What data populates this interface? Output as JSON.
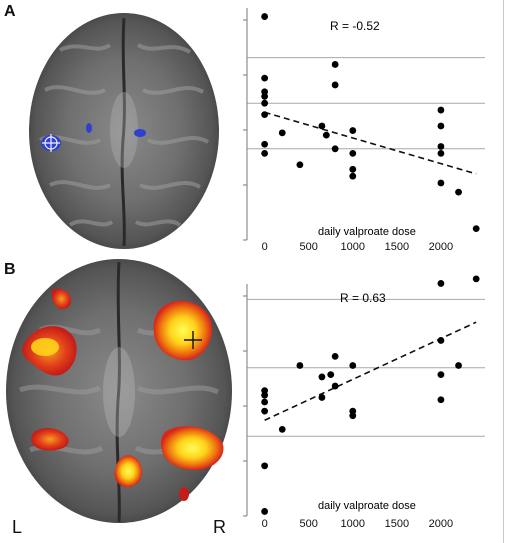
{
  "panels": {
    "a_label": "A",
    "b_label": "B"
  },
  "brain": {
    "left_label": "L",
    "right_label": "R"
  },
  "chart_data": [
    {
      "type": "scatter",
      "annotation": "R = -0.52",
      "xlabel": "daily valproate dose",
      "ylabel": "",
      "xlim": [
        -200,
        2500
      ],
      "ylim": [
        0,
        10
      ],
      "xticks": [
        0,
        500,
        1000,
        1500,
        2000
      ],
      "xtick_labels": [
        "0",
        "500",
        "1000",
        "1500",
        "2000"
      ],
      "gridlines_y": [
        4,
        6,
        8
      ],
      "grid": true,
      "trend_line": {
        "style": "dashed",
        "x": [
          0,
          2400
        ],
        "y": [
          5.6,
          2.9
        ]
      },
      "points": [
        {
          "x": 0,
          "y": 9.8
        },
        {
          "x": 0,
          "y": 7.1
        },
        {
          "x": 0,
          "y": 6.5
        },
        {
          "x": 0,
          "y": 6.3
        },
        {
          "x": 0,
          "y": 6.0
        },
        {
          "x": 0,
          "y": 5.5
        },
        {
          "x": 0,
          "y": 4.2
        },
        {
          "x": 0,
          "y": 3.8
        },
        {
          "x": 200,
          "y": 4.7
        },
        {
          "x": 400,
          "y": 3.3
        },
        {
          "x": 650,
          "y": 5.0
        },
        {
          "x": 700,
          "y": 4.6
        },
        {
          "x": 800,
          "y": 7.7
        },
        {
          "x": 800,
          "y": 6.8
        },
        {
          "x": 800,
          "y": 4.0
        },
        {
          "x": 1000,
          "y": 4.8
        },
        {
          "x": 1000,
          "y": 3.8
        },
        {
          "x": 1000,
          "y": 3.1
        },
        {
          "x": 1000,
          "y": 2.8
        },
        {
          "x": 2000,
          "y": 5.7
        },
        {
          "x": 2000,
          "y": 5.0
        },
        {
          "x": 2000,
          "y": 4.1
        },
        {
          "x": 2000,
          "y": 3.8
        },
        {
          "x": 2000,
          "y": 2.5
        },
        {
          "x": 2200,
          "y": 2.1
        },
        {
          "x": 2400,
          "y": 0.5
        }
      ]
    },
    {
      "type": "scatter",
      "annotation": "R = 0.63",
      "xlabel": "daily valproate dose",
      "ylabel": "",
      "xlim": [
        -200,
        2500
      ],
      "ylim": [
        0,
        10
      ],
      "xticks": [
        0,
        500,
        1000,
        1500,
        2000
      ],
      "xtick_labels": [
        "0",
        "500",
        "1000",
        "1500",
        "2000"
      ],
      "gridlines_y": [
        3.5,
        6.5,
        9.5
      ],
      "grid": true,
      "trend_line": {
        "style": "dashed",
        "x": [
          0,
          2400
        ],
        "y": [
          4.2,
          8.5
        ]
      },
      "points": [
        {
          "x": 0,
          "y": 5.5
        },
        {
          "x": 0,
          "y": 5.3
        },
        {
          "x": 0,
          "y": 5.0
        },
        {
          "x": 0,
          "y": 4.6
        },
        {
          "x": 0,
          "y": 2.2
        },
        {
          "x": 0,
          "y": 0.2
        },
        {
          "x": 200,
          "y": 3.8
        },
        {
          "x": 400,
          "y": 6.6
        },
        {
          "x": 650,
          "y": 6.1
        },
        {
          "x": 650,
          "y": 5.2
        },
        {
          "x": 750,
          "y": 6.2
        },
        {
          "x": 800,
          "y": 7.0
        },
        {
          "x": 800,
          "y": 5.7
        },
        {
          "x": 1000,
          "y": 6.6
        },
        {
          "x": 1000,
          "y": 4.6
        },
        {
          "x": 1000,
          "y": 4.4
        },
        {
          "x": 2000,
          "y": 10.2
        },
        {
          "x": 2000,
          "y": 7.7
        },
        {
          "x": 2000,
          "y": 6.2
        },
        {
          "x": 2000,
          "y": 5.1
        },
        {
          "x": 2200,
          "y": 6.6
        },
        {
          "x": 2400,
          "y": 10.4
        }
      ]
    }
  ]
}
